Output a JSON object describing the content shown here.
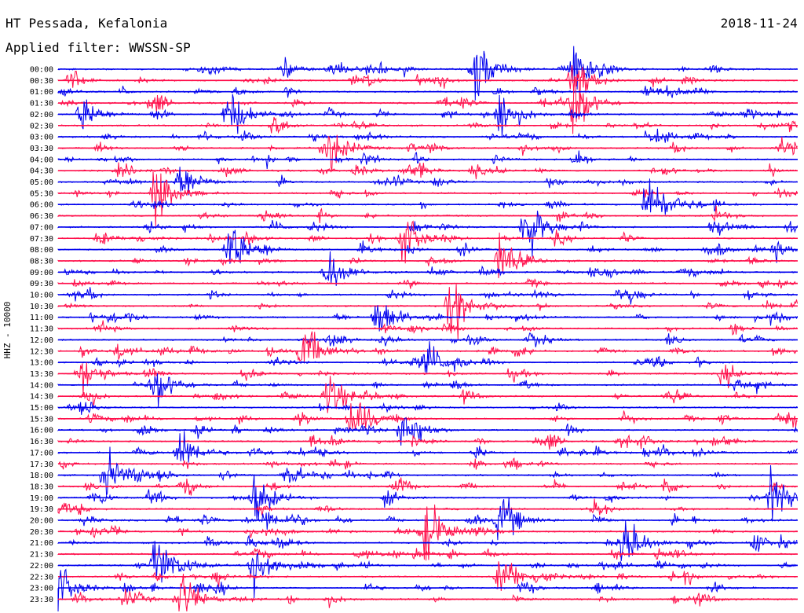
{
  "header": {
    "station": "HT Pessada, Kefalonia",
    "date": "2018-11-24",
    "filter": "Applied filter: WWSSN-SP"
  },
  "chart_data": {
    "type": "line",
    "title": "HT Pessada, Kefalonia",
    "subtitle": "Applied filter: WWSSN-SP",
    "date": "2018-11-24",
    "ylabel": "HHZ - 10000",
    "row_labels": [
      "00:00",
      "00:30",
      "01:00",
      "01:30",
      "02:00",
      "02:30",
      "03:00",
      "03:30",
      "04:00",
      "04:30",
      "05:00",
      "05:30",
      "06:00",
      "06:30",
      "07:00",
      "07:30",
      "08:00",
      "08:30",
      "09:00",
      "09:30",
      "10:00",
      "10:30",
      "11:00",
      "11:30",
      "12:00",
      "12:30",
      "13:00",
      "13:30",
      "14:00",
      "14:30",
      "15:00",
      "15:30",
      "16:00",
      "16:30",
      "17:00",
      "17:30",
      "18:00",
      "18:30",
      "19:00",
      "19:30",
      "20:00",
      "20:30",
      "21:00",
      "21:30",
      "22:00",
      "22:30",
      "23:00",
      "23:30"
    ],
    "row_minutes": 30,
    "colors": [
      "#0000ee",
      "#ff0f4b"
    ],
    "events": [
      {
        "row": 0,
        "minute": 17,
        "amp": 1.0
      },
      {
        "row": 0,
        "minute": 21,
        "amp": 0.85
      },
      {
        "row": 1,
        "minute": 21,
        "amp": 0.7
      },
      {
        "row": 3,
        "minute": 21,
        "amp": 0.9
      },
      {
        "row": 4,
        "minute": 1,
        "amp": 0.55
      },
      {
        "row": 4,
        "minute": 7,
        "amp": 0.75
      },
      {
        "row": 4,
        "minute": 18,
        "amp": 0.8
      },
      {
        "row": 7,
        "minute": 11,
        "amp": 0.7
      },
      {
        "row": 10,
        "minute": 5,
        "amp": 0.65
      },
      {
        "row": 11,
        "minute": 4,
        "amp": 0.95
      },
      {
        "row": 12,
        "minute": 24,
        "amp": 0.8
      },
      {
        "row": 14,
        "minute": 19,
        "amp": 0.95
      },
      {
        "row": 15,
        "minute": 14,
        "amp": 0.85
      },
      {
        "row": 16,
        "minute": 7,
        "amp": 0.7
      },
      {
        "row": 17,
        "minute": 18,
        "amp": 0.8
      },
      {
        "row": 18,
        "minute": 11,
        "amp": 0.7
      },
      {
        "row": 21,
        "minute": 16,
        "amp": 0.85
      },
      {
        "row": 22,
        "minute": 13,
        "amp": 0.75
      },
      {
        "row": 25,
        "minute": 10,
        "amp": 0.85
      },
      {
        "row": 26,
        "minute": 15,
        "amp": 0.65
      },
      {
        "row": 27,
        "minute": 1,
        "amp": 0.6
      },
      {
        "row": 28,
        "minute": 4,
        "amp": 0.75
      },
      {
        "row": 29,
        "minute": 11,
        "amp": 0.7
      },
      {
        "row": 31,
        "minute": 12,
        "amp": 0.8
      },
      {
        "row": 32,
        "minute": 14,
        "amp": 0.6
      },
      {
        "row": 34,
        "minute": 5,
        "amp": 0.75
      },
      {
        "row": 36,
        "minute": 2,
        "amp": 0.7
      },
      {
        "row": 38,
        "minute": 8,
        "amp": 0.75
      },
      {
        "row": 38,
        "minute": 29,
        "amp": 0.8
      },
      {
        "row": 40,
        "minute": 18,
        "amp": 0.8
      },
      {
        "row": 41,
        "minute": 15,
        "amp": 0.85
      },
      {
        "row": 42,
        "minute": 23,
        "amp": 0.9
      },
      {
        "row": 44,
        "minute": 4,
        "amp": 0.95
      },
      {
        "row": 44,
        "minute": 8,
        "amp": 0.95
      },
      {
        "row": 45,
        "minute": 18,
        "amp": 0.75
      },
      {
        "row": 46,
        "minute": 0,
        "amp": 0.8
      },
      {
        "row": 47,
        "minute": 5,
        "amp": 0.85
      }
    ]
  }
}
